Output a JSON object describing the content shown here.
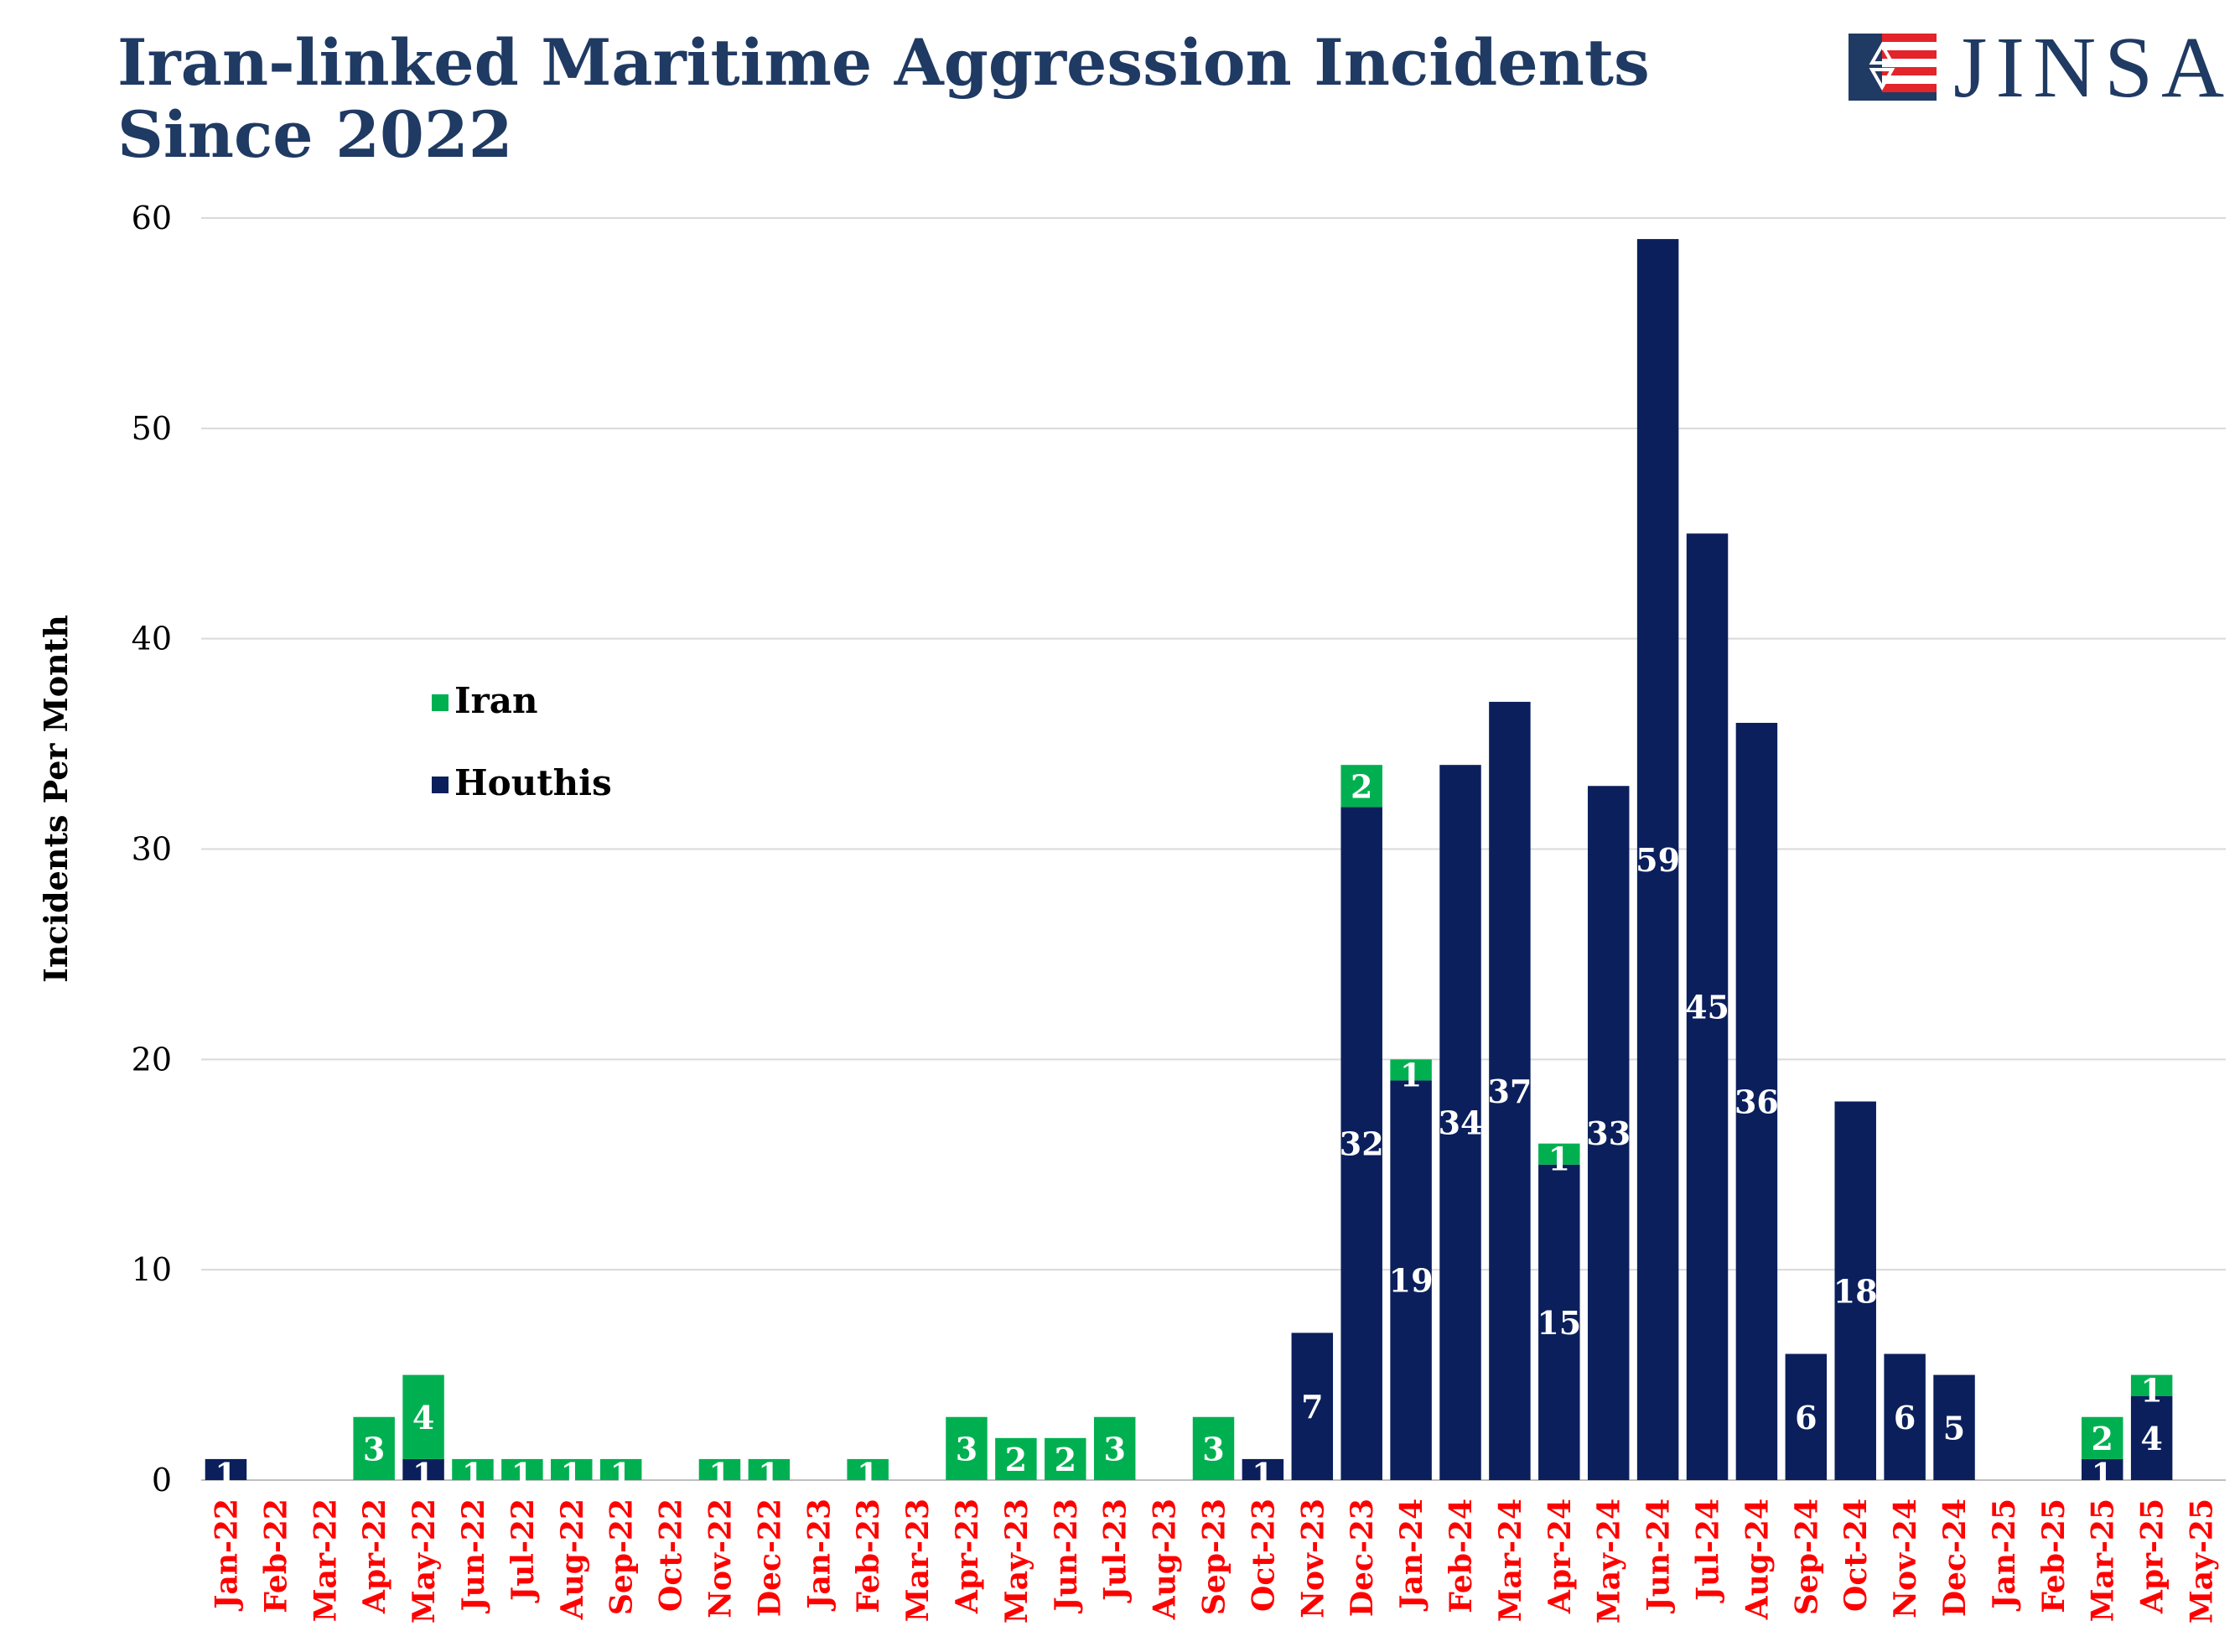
{
  "header": {
    "title_line1": "Iran-linked Maritime Aggression Incidents",
    "title_line2": "Since 2022",
    "logo_text": "JINSA",
    "logo_icon": "star-of-david-flag-icon"
  },
  "colors": {
    "iran": "#00B050",
    "houthis": "#0B1F5C",
    "title": "#1F3A63",
    "month_label": "#FF0000",
    "grid": "#D9D9D9",
    "axis_text": "#000000"
  },
  "chart_data": {
    "type": "bar",
    "stacked": true,
    "title": "Iran-linked Maritime Aggression Incidents Since 2022",
    "xlabel": "",
    "ylabel": "Incidents Per Month",
    "ylim": [
      0,
      60
    ],
    "yticks": [
      0,
      10,
      20,
      30,
      40,
      50,
      60
    ],
    "grid": true,
    "legend_position": "upper-left",
    "categories": [
      "Jan-22",
      "Feb-22",
      "Mar-22",
      "Apr-22",
      "May-22",
      "Jun-22",
      "Jul-22",
      "Aug-22",
      "Sep-22",
      "Oct-22",
      "Nov-22",
      "Dec-22",
      "Jan-23",
      "Feb-23",
      "Mar-23",
      "Apr-23",
      "May-23",
      "Jun-23",
      "Jul-23",
      "Aug-23",
      "Sep-23",
      "Oct-23",
      "Nov-23",
      "Dec-23",
      "Jan-24",
      "Feb-24",
      "Mar-24",
      "Apr-24",
      "May-24",
      "Jun-24",
      "Jul-24",
      "Aug-24",
      "Sep-24",
      "Oct-24",
      "Nov-24",
      "Dec-24",
      "Jan-25",
      "Feb-25",
      "Mar-25",
      "Apr-25",
      "May-25"
    ],
    "series": [
      {
        "name": "Houthis",
        "values": [
          1,
          0,
          0,
          0,
          1,
          0,
          0,
          0,
          0,
          0,
          0,
          0,
          0,
          0,
          0,
          0,
          0,
          0,
          0,
          0,
          0,
          1,
          7,
          32,
          19,
          34,
          37,
          15,
          33,
          59,
          45,
          36,
          6,
          18,
          6,
          5,
          0,
          0,
          1,
          4,
          0
        ]
      },
      {
        "name": "Iran",
        "values": [
          0,
          0,
          0,
          3,
          4,
          1,
          1,
          1,
          1,
          0,
          1,
          1,
          0,
          1,
          0,
          3,
          2,
          2,
          3,
          0,
          3,
          0,
          0,
          2,
          1,
          0,
          0,
          1,
          0,
          0,
          0,
          0,
          0,
          0,
          0,
          0,
          0,
          0,
          2,
          1,
          0
        ]
      }
    ],
    "legend": [
      "Iran",
      "Houthis"
    ]
  }
}
